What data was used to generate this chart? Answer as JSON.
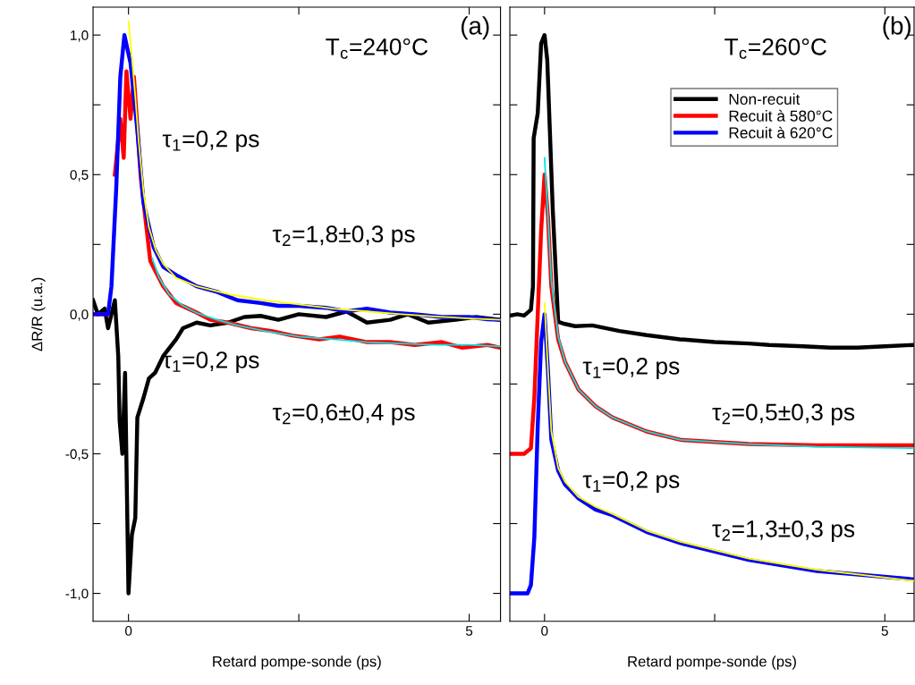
{
  "chart_data": [
    {
      "type": "line",
      "xlabel": "Retard pompe-sonde (ps)",
      "ylabel": "ΔR/R (u.a.)",
      "xlim": [
        -0.52,
        5.46
      ],
      "ylim": [
        -1.1,
        1.1
      ],
      "xticks": [
        0,
        {
          "value": 2.5,
          "label": null
        },
        5
      ],
      "yticks": [
        {
          "value": -1.0,
          "label": "-1,0"
        },
        {
          "value": -0.75,
          "label": null
        },
        {
          "value": -0.5,
          "label": "-0,5"
        },
        {
          "value": -0.25,
          "label": null
        },
        {
          "value": 0,
          "label": "0,0"
        },
        {
          "value": 0.25,
          "label": null
        },
        {
          "value": 0.5,
          "label": "0,5"
        },
        {
          "value": 0.75,
          "label": null
        },
        {
          "value": 1.0,
          "label": "1,0"
        }
      ],
      "annotations": [
        "(a)",
        "T$_{c}$=240°C",
        "τ$_{1}$=0,2 ps",
        "τ$_{2}$=1,8±0,3 ps",
        "τ$_{1}$=0,2 ps",
        "τ$_{2}$=0,6±0,4 ps"
      ],
      "series": [
        {
          "color": "#000000",
          "x": [
            -0.52,
            -0.45,
            -0.35,
            -0.3,
            -0.25,
            -0.2,
            -0.15,
            -0.13,
            -0.09,
            -0.05,
            0,
            0.05,
            0.1,
            0.13,
            0.22,
            0.3,
            0.39,
            0.51,
            0.7,
            0.8,
            1.0,
            1.2,
            1.46,
            1.7,
            1.94,
            2.2,
            2.5,
            2.9,
            3.2,
            3.5,
            3.84,
            4.1,
            4.4,
            4.8,
            5.1,
            5.46
          ],
          "values": [
            0.05,
            0.0,
            0.02,
            -0.05,
            0.0,
            0.05,
            -0.15,
            -0.38,
            -0.5,
            -0.21,
            -1.0,
            -0.79,
            -0.73,
            -0.37,
            -0.3,
            -0.23,
            -0.21,
            -0.15,
            -0.09,
            -0.05,
            -0.03,
            -0.04,
            -0.03,
            -0.01,
            -0.006,
            -0.02,
            0.0,
            -0.01,
            0.01,
            -0.03,
            -0.02,
            0.0,
            -0.03,
            -0.02,
            -0.01,
            -0.02
          ]
        },
        {
          "color": "#ff0000",
          "x": [
            -0.52,
            -0.3,
            -0.25,
            -0.2,
            -0.12,
            -0.07,
            -0.03,
            0.03,
            0.08,
            0.18,
            0.32,
            0.51,
            0.7,
            1.0,
            1.2,
            1.46,
            1.8,
            2.1,
            2.4,
            2.8,
            3.1,
            3.5,
            3.84,
            4.2,
            4.6,
            4.9,
            5.27,
            5.46
          ],
          "values": [
            0.0,
            0.0,
            null,
            0.5,
            0.7,
            0.56,
            0.87,
            0.7,
            0.85,
            0.49,
            0.19,
            0.1,
            0.04,
            0.006,
            -0.02,
            -0.03,
            -0.05,
            -0.06,
            -0.076,
            -0.09,
            -0.08,
            -0.1,
            -0.1,
            -0.11,
            -0.1,
            -0.12,
            -0.11,
            -0.12
          ]
        },
        {
          "color": "#0000ff",
          "x": [
            -0.52,
            -0.3,
            -0.25,
            -0.18,
            -0.12,
            -0.06,
            0.03,
            0.13,
            0.22,
            0.37,
            0.51,
            0.7,
            1.0,
            1.3,
            1.6,
            1.94,
            2.2,
            2.5,
            2.9,
            3.2,
            3.5,
            3.84,
            4.2,
            4.6,
            5.0,
            5.27,
            5.46
          ],
          "values": [
            0.0,
            0.0,
            0.1,
            0.45,
            0.85,
            1.0,
            0.9,
            0.66,
            0.4,
            0.24,
            0.17,
            0.14,
            0.1,
            0.08,
            0.05,
            0.04,
            0.03,
            0.03,
            0.023,
            0.01,
            0.02,
            0.006,
            0.0,
            -0.01,
            -0.01,
            -0.018,
            -0.02
          ]
        },
        {
          "color": "#ffff00",
          "x": [
            0.0,
            0.05,
            0.1,
            0.15,
            0.22,
            0.3,
            0.4,
            0.51,
            0.7,
            1.0,
            1.5,
            2.0,
            2.5,
            3.0,
            3.5,
            4.0,
            4.5,
            5.0,
            5.46
          ],
          "values": [
            1.05,
            0.92,
            0.78,
            0.62,
            0.44,
            0.31,
            0.23,
            0.18,
            0.13,
            0.1,
            0.07,
            0.05,
            0.035,
            0.02,
            0.01,
            0.0,
            -0.008,
            -0.015,
            -0.02
          ]
        },
        {
          "color": "#00e5e5",
          "x": [
            0.35,
            0.45,
            0.6,
            0.8,
            1.0,
            1.3,
            1.6,
            2.0,
            2.5,
            3.0,
            3.5,
            4.0,
            4.5,
            5.0,
            5.46
          ],
          "values": [
            0.2,
            0.13,
            0.07,
            0.03,
            0.005,
            -0.02,
            -0.04,
            -0.06,
            -0.08,
            -0.09,
            -0.1,
            -0.105,
            -0.11,
            -0.11,
            -0.115
          ]
        }
      ]
    },
    {
      "type": "line",
      "xlabel": "Retard pompe-sonde (ps)",
      "tick_labels": "x",
      "legend": "top right",
      "xlim": [
        -0.51,
        5.43
      ],
      "ylim": [
        -1.1,
        1.1
      ],
      "xticks": [
        0,
        {
          "value": 2.5,
          "label": null
        },
        5
      ],
      "yticks": [
        {
          "value": -1.0,
          "label": null
        },
        {
          "value": -0.75,
          "label": null
        },
        {
          "value": -0.5,
          "label": null
        },
        {
          "value": -0.25,
          "label": null
        },
        {
          "value": 0,
          "label": null
        },
        {
          "value": 0.25,
          "label": null
        },
        {
          "value": 0.5,
          "label": null
        },
        {
          "value": 0.75,
          "label": null
        },
        {
          "value": 1.0,
          "label": null
        }
      ],
      "annotations": [
        "(b)",
        "T$_{c}$=260°C",
        "τ$_{1}$=0,2 ps",
        "τ$_{2}$=0,5±0,3 ps",
        "τ$_{1}$=0,2 ps",
        "τ$_{2}$=1,3±0,3 ps"
      ],
      "series": [
        {
          "name": "Non-recuit",
          "color": "#000000",
          "x": [
            -0.51,
            -0.4,
            -0.3,
            -0.2,
            -0.17,
            -0.16,
            -0.1,
            -0.05,
            0.0,
            0.04,
            0.12,
            0.2,
            0.3,
            0.45,
            0.7,
            1.1,
            1.5,
            1.99,
            2.5,
            3.0,
            3.3,
            3.8,
            4.2,
            4.6,
            5.0,
            5.43
          ],
          "values": [
            -0.005,
            0.0,
            -0.005,
            0.016,
            0.1,
            0.63,
            0.72,
            0.97,
            1.0,
            0.91,
            0.38,
            -0.027,
            -0.035,
            -0.043,
            -0.04,
            -0.06,
            -0.075,
            -0.09,
            -0.1,
            -0.105,
            -0.11,
            -0.115,
            -0.12,
            -0.12,
            -0.115,
            -0.11
          ]
        },
        {
          "name": "Recuit à 580°C",
          "color": "#ff0000",
          "x": [
            -0.51,
            -0.3,
            -0.2,
            -0.15,
            -0.1,
            -0.05,
            0.0,
            0.05,
            0.1,
            0.2,
            0.3,
            0.5,
            0.75,
            1.0,
            1.5,
            2.0,
            3.0,
            4.0,
            5.43
          ],
          "values": [
            -0.5,
            -0.5,
            -0.48,
            -0.3,
            0.0,
            0.3,
            0.5,
            0.35,
            0.1,
            -0.09,
            -0.17,
            -0.27,
            -0.33,
            -0.37,
            -0.42,
            -0.45,
            -0.465,
            -0.47,
            -0.47
          ]
        },
        {
          "name": "Recuit à 620°C",
          "color": "#0000ff",
          "x": [
            -0.51,
            -0.25,
            -0.2,
            -0.15,
            -0.1,
            -0.05,
            0.0,
            0.05,
            0.1,
            0.2,
            0.3,
            0.5,
            0.75,
            1.0,
            1.5,
            2.0,
            3.0,
            4.0,
            5.43
          ],
          "values": [
            -1.0,
            -1.0,
            -0.97,
            -0.8,
            -0.4,
            -0.1,
            0.0,
            -0.2,
            -0.45,
            -0.56,
            -0.61,
            -0.66,
            -0.7,
            -0.72,
            -0.78,
            -0.82,
            -0.88,
            -0.92,
            -0.95
          ]
        },
        {
          "color": "#ffff00",
          "x": [
            0.0,
            0.05,
            0.1,
            0.2,
            0.3,
            0.5,
            0.75,
            1.0,
            1.5,
            2.0,
            3.0,
            4.0,
            5.43
          ],
          "values": [
            0.04,
            -0.2,
            -0.42,
            -0.55,
            -0.6,
            -0.655,
            -0.69,
            -0.715,
            -0.775,
            -0.815,
            -0.875,
            -0.915,
            -0.955
          ]
        },
        {
          "color": "#00e5e5",
          "x": [
            0.0,
            0.05,
            0.1,
            0.2,
            0.3,
            0.5,
            0.75,
            1.0,
            1.5,
            2.0,
            3.0,
            4.0,
            5.43
          ],
          "values": [
            0.56,
            0.35,
            0.12,
            -0.08,
            -0.17,
            -0.27,
            -0.33,
            -0.37,
            -0.42,
            -0.45,
            -0.465,
            -0.475,
            -0.48
          ]
        }
      ]
    }
  ]
}
